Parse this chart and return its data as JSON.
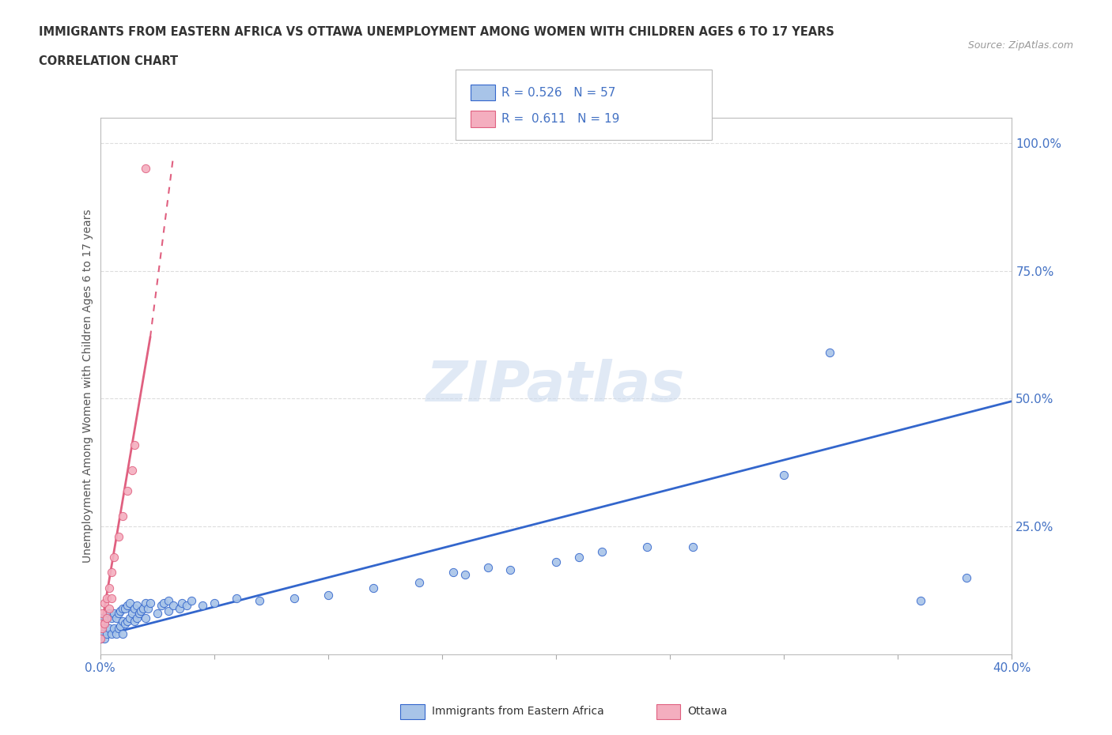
{
  "title_line1": "IMMIGRANTS FROM EASTERN AFRICA VS OTTAWA UNEMPLOYMENT AMONG WOMEN WITH CHILDREN AGES 6 TO 17 YEARS",
  "title_line2": "CORRELATION CHART",
  "source_text": "Source: ZipAtlas.com",
  "ylabel": "Unemployment Among Women with Children Ages 6 to 17 years",
  "xlim": [
    0.0,
    0.4
  ],
  "ylim": [
    0.0,
    1.05
  ],
  "xticks": [
    0.0,
    0.05,
    0.1,
    0.15,
    0.2,
    0.25,
    0.3,
    0.35,
    0.4
  ],
  "yticks_right": [
    0.25,
    0.5,
    0.75,
    1.0
  ],
  "ytick_right_labels": [
    "25.0%",
    "50.0%",
    "75.0%",
    "100.0%"
  ],
  "blue_color": "#A8C4E8",
  "pink_color": "#F4AEBF",
  "blue_line_color": "#3366CC",
  "pink_line_color": "#E06080",
  "watermark_text": "ZIPatlas",
  "background_color": "#FFFFFF",
  "grid_color": "#DDDDDD",
  "blue_scatter_x": [
    0.0,
    0.0,
    0.0,
    0.001,
    0.002,
    0.002,
    0.003,
    0.003,
    0.004,
    0.004,
    0.005,
    0.005,
    0.006,
    0.006,
    0.007,
    0.007,
    0.008,
    0.008,
    0.009,
    0.009,
    0.01,
    0.01,
    0.01,
    0.011,
    0.011,
    0.012,
    0.012,
    0.013,
    0.013,
    0.014,
    0.015,
    0.015,
    0.016,
    0.016,
    0.017,
    0.018,
    0.019,
    0.02,
    0.02,
    0.021,
    0.022,
    0.025,
    0.027,
    0.028,
    0.03,
    0.03,
    0.032,
    0.035,
    0.036,
    0.038,
    0.04,
    0.045,
    0.05,
    0.06,
    0.07,
    0.085,
    0.1,
    0.12,
    0.14,
    0.155,
    0.16,
    0.17,
    0.18,
    0.2,
    0.21,
    0.22,
    0.24,
    0.26,
    0.3,
    0.32,
    0.36,
    0.38
  ],
  "blue_scatter_y": [
    0.03,
    0.05,
    0.07,
    0.04,
    0.03,
    0.06,
    0.04,
    0.07,
    0.05,
    0.08,
    0.04,
    0.07,
    0.05,
    0.08,
    0.04,
    0.07,
    0.05,
    0.08,
    0.055,
    0.085,
    0.04,
    0.065,
    0.09,
    0.06,
    0.09,
    0.065,
    0.095,
    0.07,
    0.1,
    0.08,
    0.065,
    0.09,
    0.07,
    0.095,
    0.08,
    0.085,
    0.09,
    0.07,
    0.1,
    0.09,
    0.1,
    0.08,
    0.095,
    0.1,
    0.085,
    0.105,
    0.095,
    0.09,
    0.1,
    0.095,
    0.105,
    0.095,
    0.1,
    0.11,
    0.105,
    0.11,
    0.115,
    0.13,
    0.14,
    0.16,
    0.155,
    0.17,
    0.165,
    0.18,
    0.19,
    0.2,
    0.21,
    0.21,
    0.35,
    0.59,
    0.105,
    0.15
  ],
  "pink_scatter_x": [
    0.0,
    0.0,
    0.001,
    0.001,
    0.002,
    0.002,
    0.003,
    0.003,
    0.004,
    0.004,
    0.005,
    0.005,
    0.006,
    0.008,
    0.01,
    0.012,
    0.014,
    0.015,
    0.02
  ],
  "pink_scatter_y": [
    0.03,
    0.06,
    0.05,
    0.08,
    0.06,
    0.1,
    0.07,
    0.11,
    0.09,
    0.13,
    0.11,
    0.16,
    0.19,
    0.23,
    0.27,
    0.32,
    0.36,
    0.41,
    0.95
  ],
  "blue_trendline_x0": 0.0,
  "blue_trendline_y0": 0.035,
  "blue_trendline_x1": 0.4,
  "blue_trendline_y1": 0.495,
  "pink_trendline_solid_x0": 0.0,
  "pink_trendline_solid_y0": 0.04,
  "pink_trendline_solid_x1": 0.022,
  "pink_trendline_solid_y1": 0.62,
  "pink_trendline_dashed_x0": 0.022,
  "pink_trendline_dashed_y0": 0.62,
  "pink_trendline_dashed_x1": 0.032,
  "pink_trendline_dashed_y1": 0.97
}
